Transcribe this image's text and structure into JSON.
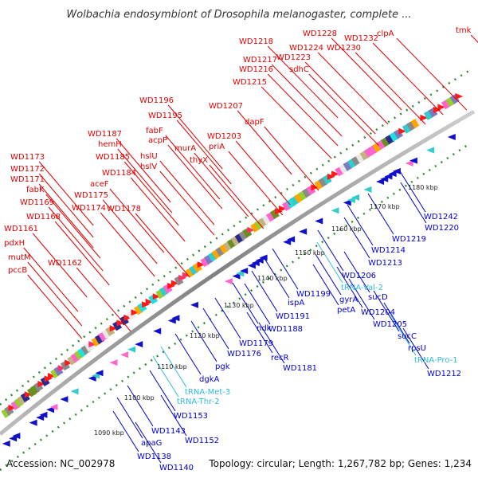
{
  "title": "Wolbachia endosymbiont of Drosophila melanogaster, complete ...",
  "footer": {
    "accession": "Accession: NC_002978",
    "summary": "Topology: circular; Length: 1,267,782 bp; Genes: 1,234"
  },
  "colors": {
    "forward_label": "#dd0000",
    "reverse_label": "#0000cc",
    "trna_label": "#33bbdd",
    "backbone": "#777777",
    "dotted": "#2e8b2e"
  },
  "kbp_ticks": [
    "1090 kbp",
    "1100 kbp",
    "1110 kbp",
    "1120 kbp",
    "1130 kbp",
    "1140 kbp",
    "1150 kbp",
    "1160 kbp",
    "1170 kbp",
    "1180 kbp"
  ],
  "top_labels": [
    "tmk",
    "clpA",
    "WD1232",
    "WD1230",
    "WD1228",
    "WD1224",
    "WD1223",
    "WD1218",
    "WD1217",
    "WD1216",
    "sdhC",
    "WD1215",
    "WD1207",
    "dapF",
    "WD1203",
    "priA",
    "WD1196",
    "WD1195",
    "fabF",
    "acpP",
    "murA",
    "thyX",
    "hslU",
    "hslV",
    "WD1187",
    "hemH",
    "WD1185",
    "WD1184",
    "aceF",
    "WD1178",
    "WD1175",
    "WD1174",
    "WD1173",
    "WD1172",
    "WD1171",
    "fabK",
    "WD1169",
    "WD1168",
    "WD1161",
    "WD1162",
    "pdxH",
    "mutM",
    "pccB"
  ],
  "bottom_labels": [
    "WD1242",
    "WD1220",
    "WD1219",
    "WD1214",
    "WD1213",
    "WD1206",
    "tRNA-Val-2",
    "sucD",
    "gyrA",
    "petA",
    "WD1204",
    "WD1205",
    "sucC",
    "rpsU",
    "tRNA-Pro-1",
    "WD1212",
    "WD1199",
    "ispA",
    "WD1191",
    "WD1188",
    "ndk",
    "WD1179",
    "WD1176",
    "recR",
    "WD1181",
    "pgk",
    "dgkA",
    "tRNA-Met-3",
    "tRNA-Thr-2",
    "WD1153",
    "WD1143",
    "WD1152",
    "apaG",
    "WD1138",
    "WD1140"
  ]
}
